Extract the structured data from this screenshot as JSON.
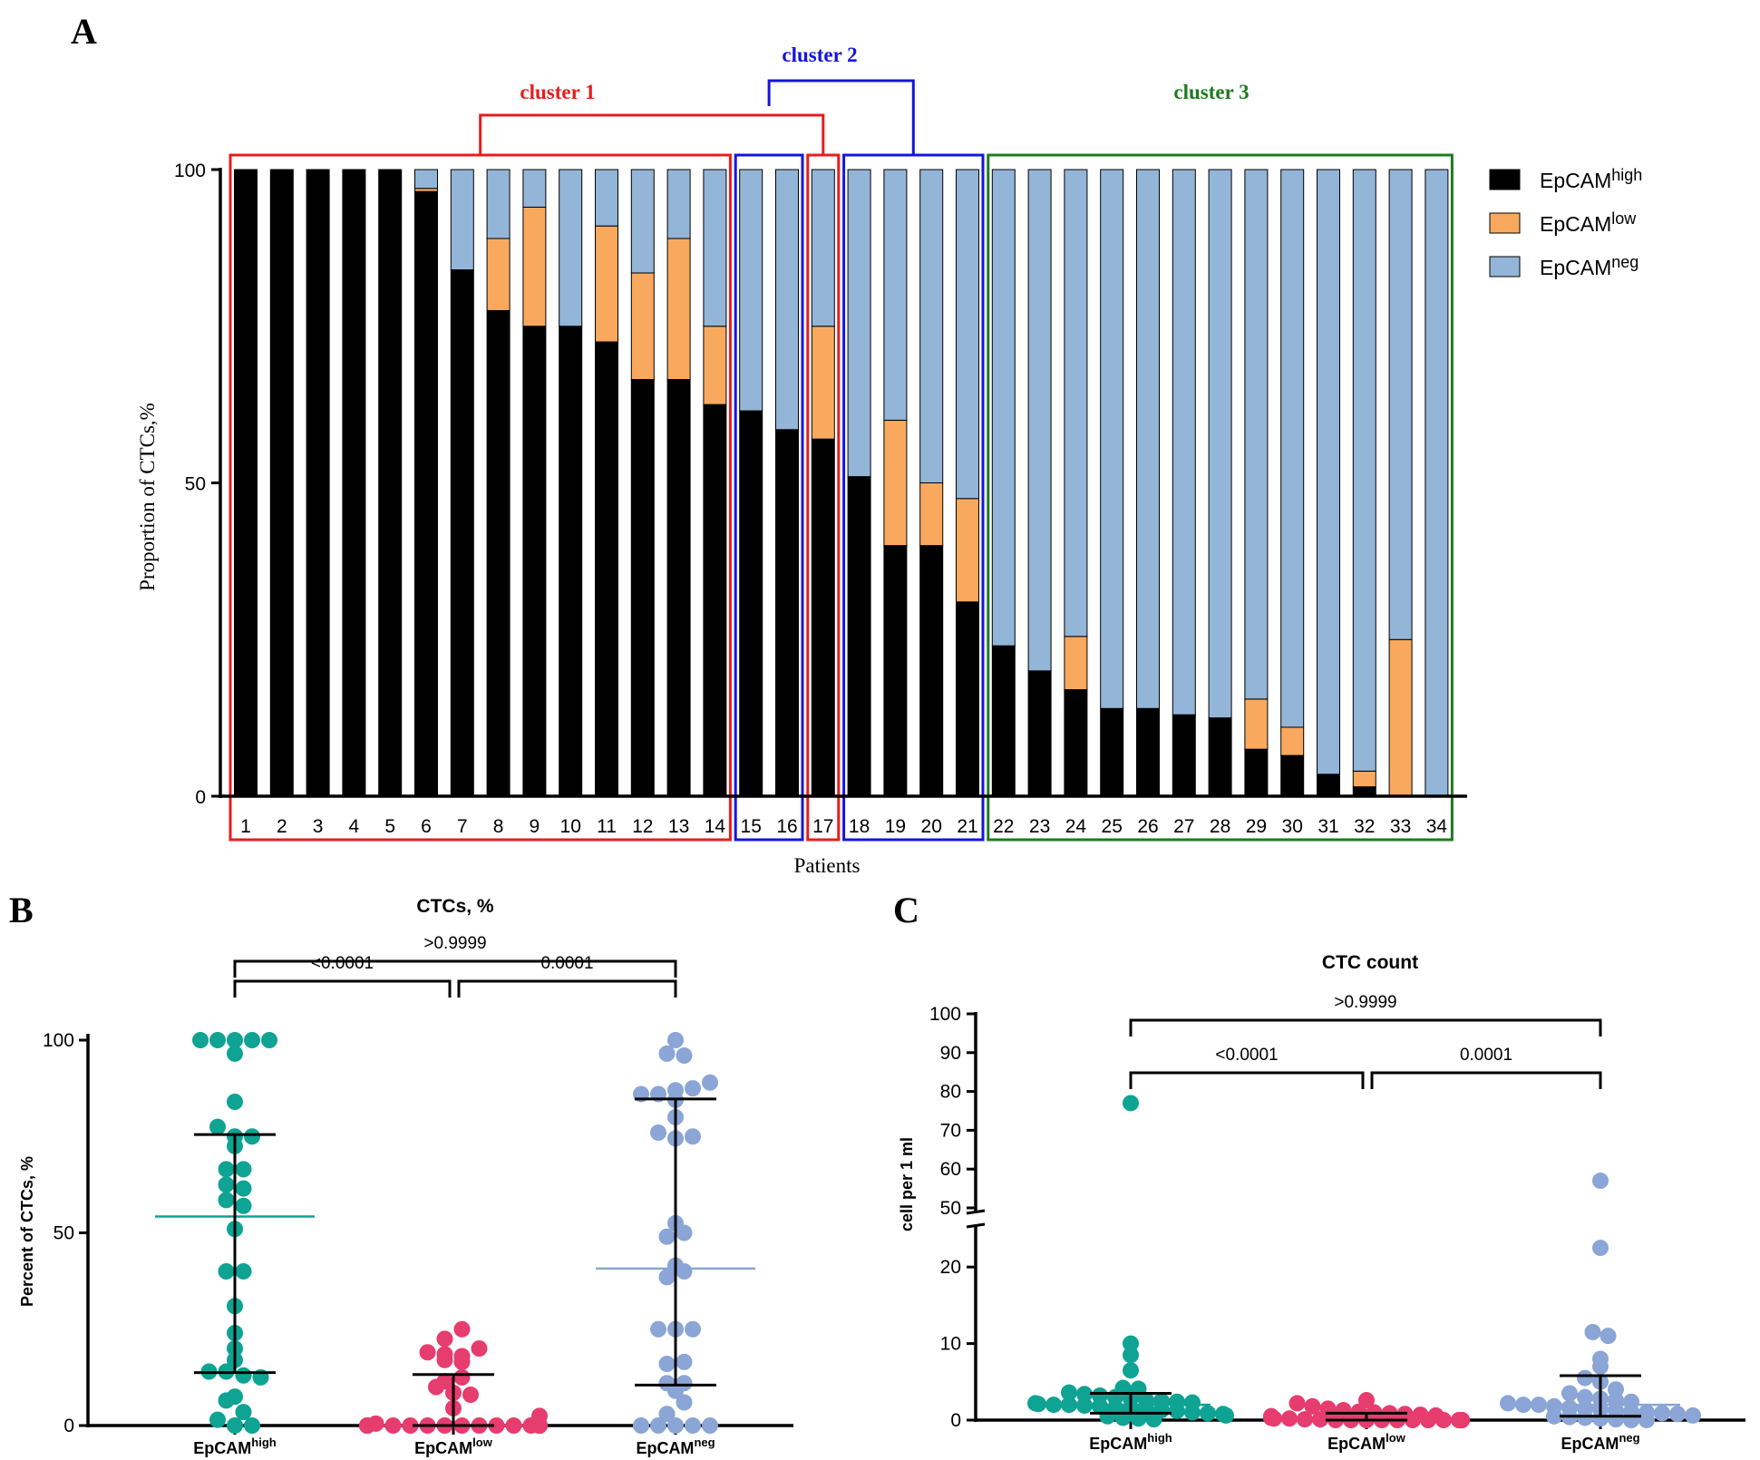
{
  "panels": {
    "a": {
      "letter": "A"
    },
    "b": {
      "letter": "B"
    },
    "c": {
      "letter": "C"
    }
  },
  "colors": {
    "high": "#000000",
    "low": "#F9A95E",
    "neg": "#93B5D8",
    "cluster1": "#E81C1C",
    "cluster2": "#1414E0",
    "cluster3": "#1E7B1E",
    "dot_high": "#0EA393",
    "dot_low": "#E63C6E",
    "dot_neg": "#8AA5D6"
  },
  "chart_data": [
    {
      "id": "A",
      "type": "bar",
      "stacked": true,
      "title": "",
      "xlabel": "Patients",
      "ylabel": "Proportion of CTCs,%",
      "ylim": [
        0,
        100
      ],
      "yticks": [
        "0",
        "50",
        "100"
      ],
      "categories": [
        "1",
        "2",
        "3",
        "4",
        "5",
        "6",
        "7",
        "8",
        "9",
        "10",
        "11",
        "12",
        "13",
        "14",
        "15",
        "16",
        "17",
        "18",
        "19",
        "20",
        "21",
        "22",
        "23",
        "24",
        "25",
        "26",
        "27",
        "28",
        "29",
        "30",
        "31",
        "32",
        "33",
        "34"
      ],
      "series": [
        {
          "name": "EpCAM",
          "sup": "high",
          "key": "high",
          "values": [
            100,
            100,
            100,
            100,
            100,
            96.5,
            84,
            77.5,
            75,
            75,
            72.5,
            66.5,
            66.5,
            62.5,
            61.5,
            58.5,
            57,
            51,
            40,
            40,
            31,
            24,
            20,
            17,
            14,
            14,
            13,
            12.5,
            7.5,
            6.5,
            3.5,
            1.5,
            0,
            0
          ]
        },
        {
          "name": "EpCAM",
          "sup": "low",
          "key": "low",
          "values": [
            0,
            0,
            0,
            0,
            0,
            0.5,
            0,
            11.5,
            19,
            0,
            18.5,
            17,
            22.5,
            12.5,
            0,
            0,
            18,
            0,
            20,
            10,
            16.5,
            0,
            0,
            8.5,
            0,
            0,
            0,
            0,
            8,
            4.5,
            0,
            2.5,
            25,
            0
          ]
        },
        {
          "name": "EpCAM",
          "sup": "neg",
          "key": "neg",
          "values": [
            0,
            0,
            0,
            0,
            0,
            3,
            16,
            11,
            6,
            25,
            9,
            16.5,
            11,
            25,
            38.5,
            41.5,
            25,
            49,
            40,
            50,
            52.5,
            76,
            80,
            74.5,
            86,
            86,
            87,
            87.5,
            84.5,
            89,
            96.5,
            96,
            75,
            100
          ]
        }
      ],
      "clusters": [
        {
          "label": "cluster 1",
          "key": "cluster1",
          "boxes": [
            [
              1,
              14
            ],
            [
              17,
              17
            ]
          ]
        },
        {
          "label": "cluster 2",
          "key": "cluster2",
          "boxes": [
            [
              15,
              16
            ],
            [
              18,
              21
            ]
          ]
        },
        {
          "label": "cluster 3",
          "key": "cluster3",
          "boxes": [
            [
              22,
              34
            ]
          ]
        }
      ],
      "legend_position": "right"
    },
    {
      "id": "B",
      "type": "scatter",
      "title": "CTCs, %",
      "xlabel": "",
      "ylabel": "Percent of CTCs, %",
      "ylim": [
        0,
        100
      ],
      "yticks": [
        "0",
        "50",
        "100"
      ],
      "categories": [
        {
          "name": "EpCAM",
          "sup": "high"
        },
        {
          "name": "EpCAM",
          "sup": "low"
        },
        {
          "name": "EpCAM",
          "sup": "neg"
        }
      ],
      "series": [
        {
          "name": "EpCAM high",
          "key": "dot_high",
          "values": [
            100,
            100,
            100,
            100,
            100,
            96.5,
            84,
            77.5,
            75,
            75,
            72.5,
            66.5,
            66.5,
            62.5,
            61.5,
            58.5,
            57,
            51,
            40,
            40,
            31,
            24,
            20,
            17,
            14,
            14,
            13,
            12.5,
            7.5,
            6.5,
            3.5,
            1.5,
            0,
            0
          ],
          "median": 54.25,
          "q1": 13.75,
          "q3": 75.5
        },
        {
          "name": "EpCAM low",
          "key": "dot_low",
          "values": [
            0,
            0,
            0,
            0,
            0,
            0.5,
            0,
            11.5,
            19,
            0,
            18.5,
            17,
            22.5,
            12.5,
            0,
            0,
            18,
            0,
            20,
            10,
            16.5,
            0,
            0,
            8.5,
            0,
            0,
            0,
            0,
            8,
            4.5,
            0,
            2.5,
            25,
            0
          ],
          "median": 0,
          "q1": 0,
          "q3": 13.25
        },
        {
          "name": "EpCAM neg",
          "key": "dot_neg",
          "values": [
            0,
            0,
            0,
            0,
            0,
            3,
            16,
            11,
            6,
            25,
            9,
            16.5,
            11,
            25,
            38.5,
            41.5,
            25,
            49,
            40,
            50,
            52.5,
            76,
            80,
            74.5,
            86,
            86,
            87,
            87.5,
            84.5,
            89,
            96.5,
            96,
            75,
            100
          ],
          "median": 40.75,
          "q1": 10.5,
          "q3": 84.75
        }
      ],
      "comparisons": [
        {
          "from": 0,
          "to": 1,
          "label": "<0.0001"
        },
        {
          "from": 1,
          "to": 2,
          "label": "0.0001"
        },
        {
          "from": 0,
          "to": 2,
          "label": ">0.9999"
        }
      ]
    },
    {
      "id": "C",
      "type": "scatter",
      "title": "CTC count",
      "xlabel": "",
      "ylabel": "cell per 1 ml",
      "axis_break": {
        "lower": [
          0,
          25
        ],
        "upper": [
          50,
          100
        ]
      },
      "yticks_lower": [
        "0",
        "10",
        "20"
      ],
      "yticks_upper": [
        "50",
        "60",
        "70",
        "80",
        "90",
        "100"
      ],
      "categories": [
        {
          "name": "EpCAM",
          "sup": "high"
        },
        {
          "name": "EpCAM",
          "sup": "low"
        },
        {
          "name": "EpCAM",
          "sup": "neg"
        }
      ],
      "series": [
        {
          "name": "EpCAM high",
          "key": "dot_high",
          "values": [
            77,
            10,
            8.5,
            6.5,
            4.2,
            4.1,
            3.6,
            3.4,
            3.2,
            3,
            2.8,
            2.6,
            2.5,
            2.4,
            2.3,
            2.2,
            2.1,
            2,
            2,
            1.9,
            1.8,
            1.6,
            1.5,
            1.4,
            1.3,
            1.2,
            1,
            0.9,
            0.8,
            0.6,
            0.5,
            0.3,
            0.2,
            0.1
          ],
          "median": 2,
          "q1": 0.9,
          "q3": 3.5
        },
        {
          "name": "EpCAM low",
          "key": "dot_low",
          "values": [
            2.6,
            2.2,
            1.8,
            1.5,
            1.3,
            1.1,
            1,
            0.9,
            0.8,
            0.7,
            0.6,
            0.5,
            0.5,
            0.4,
            0.3,
            0.3,
            0.2,
            0.2,
            0.1,
            0.1,
            0,
            0,
            0,
            0,
            0,
            0,
            0,
            0,
            0,
            0,
            0,
            0,
            0,
            0
          ],
          "median": 0.3,
          "q1": 0,
          "q3": 0.9
        },
        {
          "name": "EpCAM neg",
          "key": "dot_neg",
          "values": [
            57,
            22.5,
            11.5,
            11,
            8,
            7,
            5.5,
            5,
            4,
            3.5,
            3,
            2.8,
            2.6,
            2.4,
            2.2,
            2,
            2,
            1.8,
            1.6,
            1.5,
            1.4,
            1.2,
            1.1,
            1,
            0.9,
            0.8,
            0.6,
            0.5,
            0.4,
            0.3,
            0.2,
            0.1,
            0,
            0
          ],
          "median": 2,
          "q1": 0.5,
          "q3": 5.8
        }
      ],
      "comparisons": [
        {
          "from": 0,
          "to": 1,
          "label": "<0.0001"
        },
        {
          "from": 1,
          "to": 2,
          "label": "0.0001"
        },
        {
          "from": 0,
          "to": 2,
          "label": ">0.9999"
        }
      ]
    }
  ]
}
